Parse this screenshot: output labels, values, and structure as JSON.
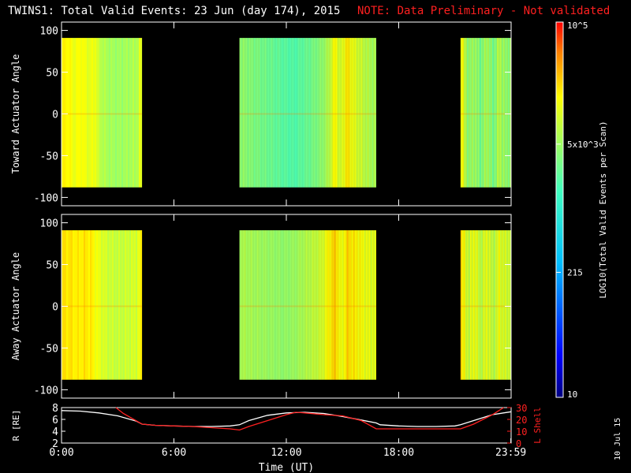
{
  "header": {
    "title": "TWINS1: Total Valid Events: 23 Jun (day 174), 2015",
    "note": "NOTE: Data Preliminary - Not validated"
  },
  "date_stamp": "10 Jul 15",
  "colorbar": {
    "label": "LOG10(Total Valid Events per Scan)",
    "ticks": [
      {
        "value": 10,
        "label": "10"
      },
      {
        "value": 215,
        "label": "215"
      },
      {
        "value": 5000,
        "label": "5x10^3"
      },
      {
        "value": 100000,
        "label": "10^5"
      }
    ],
    "scale": "log",
    "range": [
      10,
      100000
    ]
  },
  "chart_data": [
    {
      "type": "heatmap",
      "name": "toward",
      "ylabel": "Toward Actuator Angle",
      "ylim": [
        -110,
        110
      ],
      "yticks": [
        -100,
        -50,
        0,
        50,
        100
      ],
      "xlim": [
        0,
        24
      ],
      "data_y_range": [
        -88,
        91
      ],
      "grid": false,
      "segments": [
        {
          "start_hr": 0.0,
          "end_hr": 4.3,
          "typical_log_value": 3.9,
          "profile": [
            [
              0,
              4.2
            ],
            [
              0.3,
              4.25
            ],
            [
              0.6,
              4.1
            ],
            [
              1.0,
              4.2
            ],
            [
              1.4,
              4.05
            ],
            [
              1.8,
              4.15
            ],
            [
              1.9,
              3.9
            ],
            [
              2.4,
              3.75
            ],
            [
              3.0,
              3.7
            ],
            [
              3.6,
              3.75
            ],
            [
              4.0,
              3.8
            ],
            [
              4.2,
              4.1
            ]
          ]
        },
        {
          "start_hr": 9.5,
          "end_hr": 16.8,
          "typical_log_value": 3.5,
          "profile": [
            [
              9.5,
              3.65
            ],
            [
              10.2,
              3.55
            ],
            [
              11.0,
              3.45
            ],
            [
              11.8,
              3.35
            ],
            [
              12.4,
              3.3
            ],
            [
              13.2,
              3.45
            ],
            [
              13.8,
              3.6
            ],
            [
              14.2,
              3.8
            ],
            [
              14.6,
              4.25
            ],
            [
              14.8,
              3.9
            ],
            [
              15.2,
              4.3
            ],
            [
              15.6,
              4.05
            ],
            [
              16.2,
              3.85
            ],
            [
              16.6,
              3.75
            ]
          ]
        },
        {
          "start_hr": 21.3,
          "end_hr": 24.0,
          "typical_log_value": 3.6,
          "profile": [
            [
              21.3,
              4.25
            ],
            [
              21.5,
              3.85
            ],
            [
              21.7,
              3.6
            ],
            [
              22.0,
              3.75
            ],
            [
              22.3,
              3.5
            ],
            [
              22.7,
              3.8
            ],
            [
              23.0,
              3.45
            ],
            [
              23.3,
              3.85
            ],
            [
              23.7,
              3.6
            ],
            [
              23.98,
              3.7
            ]
          ]
        }
      ]
    },
    {
      "type": "heatmap",
      "name": "away",
      "ylabel": "Away Actuator Angle",
      "ylim": [
        -110,
        110
      ],
      "yticks": [
        -100,
        -50,
        0,
        50,
        100
      ],
      "xlim": [
        0,
        24
      ],
      "data_y_range": [
        -88,
        91
      ],
      "grid": false,
      "segments": [
        {
          "start_hr": 0.0,
          "end_hr": 4.3,
          "typical_log_value": 4.1,
          "profile": [
            [
              0,
              4.3
            ],
            [
              0.4,
              4.3
            ],
            [
              0.8,
              4.25
            ],
            [
              1.2,
              4.3
            ],
            [
              1.6,
              4.25
            ],
            [
              1.9,
              4.1
            ],
            [
              2.4,
              3.95
            ],
            [
              3.0,
              3.9
            ],
            [
              3.6,
              3.95
            ],
            [
              4.0,
              4.0
            ],
            [
              4.2,
              4.2
            ]
          ]
        },
        {
          "start_hr": 9.5,
          "end_hr": 16.8,
          "typical_log_value": 3.8,
          "profile": [
            [
              9.5,
              3.8
            ],
            [
              10.2,
              3.75
            ],
            [
              11.0,
              3.7
            ],
            [
              11.8,
              3.65
            ],
            [
              12.4,
              3.7
            ],
            [
              13.2,
              3.85
            ],
            [
              13.8,
              3.95
            ],
            [
              14.2,
              4.2
            ],
            [
              14.6,
              4.4
            ],
            [
              14.9,
              4.05
            ],
            [
              15.2,
              4.35
            ],
            [
              15.6,
              4.25
            ],
            [
              16.2,
              4.1
            ],
            [
              16.6,
              4.05
            ]
          ]
        },
        {
          "start_hr": 21.3,
          "end_hr": 24.0,
          "typical_log_value": 3.9,
          "profile": [
            [
              21.3,
              4.3
            ],
            [
              21.5,
              4.1
            ],
            [
              21.7,
              3.9
            ],
            [
              22.0,
              4.15
            ],
            [
              22.3,
              3.85
            ],
            [
              22.7,
              4.1
            ],
            [
              23.0,
              3.8
            ],
            [
              23.3,
              4.1
            ],
            [
              23.7,
              3.95
            ],
            [
              23.98,
              4.0
            ]
          ]
        }
      ]
    },
    {
      "type": "line",
      "name": "orbit",
      "xlabel": "Time (UT)",
      "xlim": [
        0,
        24
      ],
      "xticks": [
        {
          "hr": 0,
          "label": "0:00"
        },
        {
          "hr": 6,
          "label": "6:00"
        },
        {
          "hr": 12,
          "label": "12:00"
        },
        {
          "hr": 18,
          "label": "18:00"
        },
        {
          "hr": 23.983,
          "label": "23:59"
        }
      ],
      "left_axis": {
        "label": "R [RE]",
        "ylim": [
          2,
          8
        ],
        "ticks": [
          2,
          4,
          6,
          8
        ]
      },
      "right_axis": {
        "label": "L Shell",
        "ylim": [
          0,
          30
        ],
        "ticks": [
          0,
          10,
          20,
          30
        ]
      },
      "series": [
        {
          "name": "R [RE]",
          "axis": "left",
          "color": "#ffffff",
          "x": [
            0,
            1,
            2,
            3,
            4,
            4.3,
            5,
            6,
            7,
            8,
            9,
            9.5,
            10,
            11,
            12,
            13,
            14,
            15,
            16,
            16.8,
            17,
            18,
            19,
            20,
            21,
            21.3,
            22,
            23,
            24
          ],
          "y": [
            7.5,
            7.4,
            7.1,
            6.6,
            5.7,
            5.2,
            5.0,
            4.9,
            4.8,
            4.8,
            4.9,
            5.1,
            5.8,
            6.7,
            7.1,
            7.2,
            7.0,
            6.5,
            5.9,
            5.4,
            5.1,
            4.9,
            4.8,
            4.8,
            4.9,
            5.1,
            5.8,
            6.8,
            7.3
          ]
        },
        {
          "name": "L Shell",
          "axis": "right",
          "color": "#ff2020",
          "x": [
            2.9,
            3.3,
            4.3,
            5,
            6,
            7,
            8,
            9,
            9.5,
            10,
            11,
            12,
            12.5,
            13,
            14,
            15,
            16,
            16.8,
            17,
            18,
            19,
            20,
            21,
            21.3,
            22,
            23,
            23.6
          ],
          "y": [
            30,
            25,
            16,
            15,
            14.5,
            14,
            13,
            12,
            11,
            14,
            19,
            24,
            26,
            25.5,
            24,
            23,
            19,
            12,
            12,
            12,
            12,
            12,
            12,
            12,
            16,
            24,
            30
          ]
        }
      ]
    }
  ]
}
